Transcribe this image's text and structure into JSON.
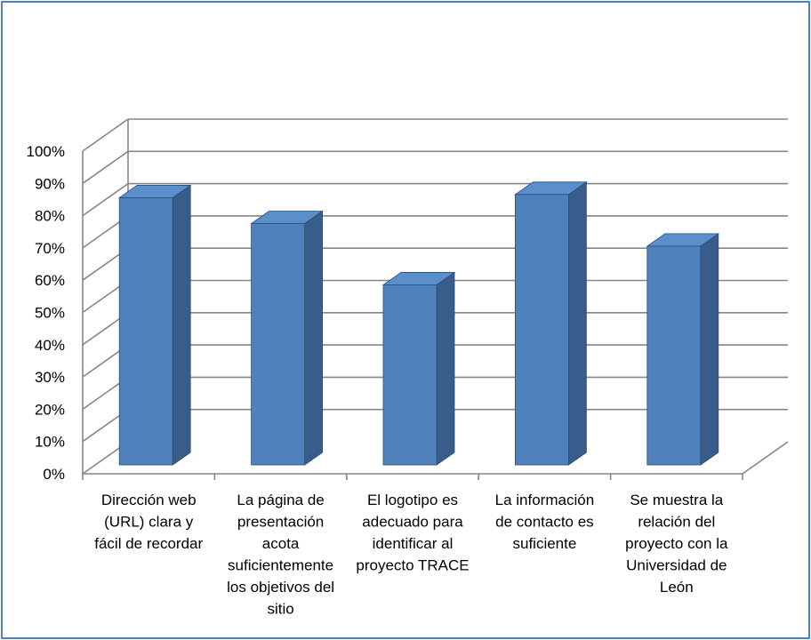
{
  "chart_data": {
    "type": "bar",
    "title": "",
    "xlabel": "",
    "ylabel": "",
    "ylim": [
      0,
      100
    ],
    "y_ticks": [
      "0%",
      "10%",
      "20%",
      "30%",
      "40%",
      "50%",
      "60%",
      "70%",
      "80%",
      "90%",
      "100%"
    ],
    "grid": true,
    "three_d": true,
    "categories": [
      [
        "Dirección web",
        "(URL)  clara y",
        "fácil de recordar"
      ],
      [
        "La página de",
        "presentación",
        "acota",
        "suficientemente",
        "los objetivos del",
        "sitio"
      ],
      [
        "El logotipo es",
        "adecuado para",
        "identificar al",
        "proyecto TRACE"
      ],
      [
        "La información",
        "de contacto es",
        "suficiente"
      ],
      [
        "Se muestra la",
        "relación del",
        "proyecto con  la",
        "Universidad de",
        "León"
      ]
    ],
    "values": [
      85,
      77,
      58,
      86,
      70
    ],
    "colors": {
      "bar_front": "#4f81bd",
      "bar_side": "#385d8a",
      "bar_top": "#5b8fcc",
      "grid": "#868686",
      "frame": "#4f81bd"
    }
  }
}
